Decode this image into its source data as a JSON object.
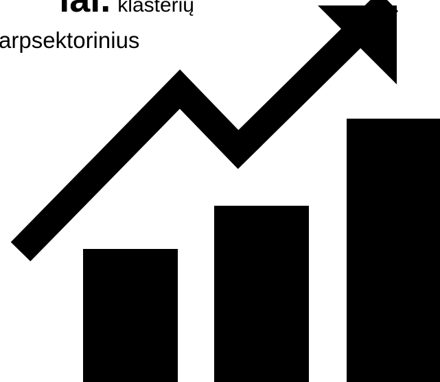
{
  "text": {
    "bold_word": "iai.",
    "word_after": "klasterių",
    "line2": "arpsektorinius"
  },
  "illustration": {
    "icon": "growth-chart-with-arrow",
    "color": "#000000",
    "bar_count": 3
  }
}
